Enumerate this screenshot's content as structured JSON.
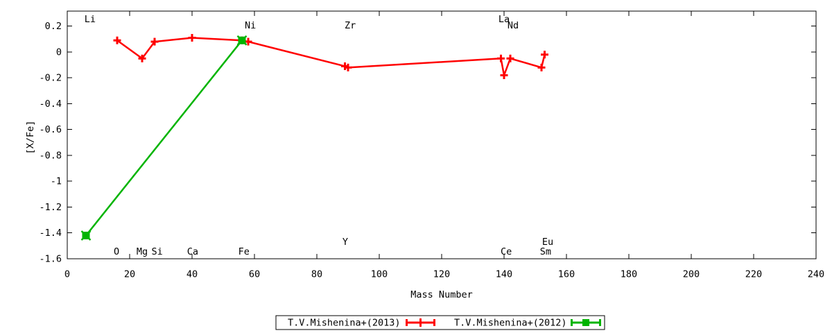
{
  "page": {
    "background": "#ffffff",
    "foreground": "#000000"
  },
  "chart_data": {
    "type": "line",
    "title": "",
    "xlabel": "Mass Number",
    "ylabel": "[X/Fe]",
    "xlim": [
      0,
      240
    ],
    "ylim": [
      -1.6,
      0.3166
    ],
    "grid": false,
    "xticks": [
      0,
      20,
      40,
      60,
      80,
      100,
      120,
      140,
      160,
      180,
      200,
      220,
      240
    ],
    "xtick_labels": [
      "0",
      "20",
      "40",
      "60",
      "80",
      "100",
      "120",
      "140",
      "160",
      "180",
      "200",
      "220",
      "240"
    ],
    "yticks": [
      0.2,
      0,
      -0.2,
      -0.4,
      -0.6,
      -0.8,
      -1,
      -1.2,
      -1.4,
      -1.6
    ],
    "ytick_labels": [
      "0.2",
      "0",
      "-0.2",
      "-0.4",
      "-0.6",
      "-0.8",
      "-1",
      "-1.2",
      "-1.4",
      "-1.6"
    ],
    "series": [
      {
        "name": "T.V.Mishenina+(2013)",
        "color": "#ff0000",
        "marker": "plus",
        "style": "line-with-errorbar-points",
        "elements": [
          "O",
          "Mg",
          "Si",
          "Ca",
          "Fe",
          "Ni",
          "Y",
          "Zr",
          "La",
          "Ce",
          "Nd",
          "Sm",
          "Eu"
        ],
        "x": [
          16,
          24,
          28,
          40,
          56,
          58,
          89,
          90,
          139,
          140,
          142,
          152,
          153
        ],
        "y": [
          0.09,
          -0.05,
          0.08,
          0.11,
          0.09,
          0.08,
          -0.11,
          -0.12,
          -0.05,
          -0.18,
          -0.05,
          -0.12,
          -0.02
        ]
      },
      {
        "name": "T.V.Mishenina+(2012)",
        "color": "#00b400",
        "marker": "filled-square-cross",
        "style": "line-with-errorbar-points",
        "elements": [
          "Li",
          "Fe"
        ],
        "x": [
          6,
          56
        ],
        "y": [
          -1.42,
          0.09
        ]
      }
    ],
    "annotations": [
      {
        "label": "Li",
        "x": 7.3,
        "row": "top"
      },
      {
        "label": "Ni",
        "x": 58.7,
        "row": "top2"
      },
      {
        "label": "Zr",
        "x": 90.7,
        "row": "top2"
      },
      {
        "label": "La",
        "x": 140.0,
        "row": "top"
      },
      {
        "label": "Nd",
        "x": 142.9,
        "row": "top2"
      },
      {
        "label": "O",
        "x": 15.8,
        "row": "bottom"
      },
      {
        "label": "Mg",
        "x": 24.0,
        "row": "bottom"
      },
      {
        "label": "Si",
        "x": 28.8,
        "row": "bottom"
      },
      {
        "label": "Ca",
        "x": 40.2,
        "row": "bottom"
      },
      {
        "label": "Fe",
        "x": 56.6,
        "row": "bottom"
      },
      {
        "label": "Y",
        "x": 89.1,
        "row": "bottom2"
      },
      {
        "label": "Ce",
        "x": 140.7,
        "row": "bottom"
      },
      {
        "label": "Sm",
        "x": 153.3,
        "row": "bottom"
      },
      {
        "label": "Eu",
        "x": 154.0,
        "row": "bottom2"
      }
    ],
    "legend": {
      "position": "bottom-center-outside",
      "boxed": true,
      "entries": [
        "T.V.Mishenina+(2013)",
        "T.V.Mishenina+(2012)"
      ]
    }
  }
}
